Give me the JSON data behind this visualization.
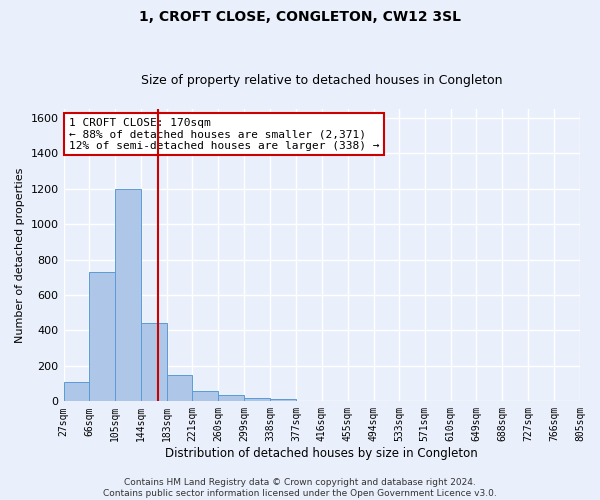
{
  "title": "1, CROFT CLOSE, CONGLETON, CW12 3SL",
  "subtitle": "Size of property relative to detached houses in Congleton",
  "xlabel": "Distribution of detached houses by size in Congleton",
  "ylabel": "Number of detached properties",
  "bin_edges": [
    27,
    66,
    105,
    144,
    183,
    221,
    260,
    299,
    338,
    377,
    416,
    455,
    494,
    533,
    571,
    610,
    649,
    688,
    727,
    766,
    805
  ],
  "bar_heights": [
    110,
    730,
    1200,
    440,
    150,
    60,
    35,
    20,
    12,
    0,
    0,
    0,
    0,
    0,
    0,
    0,
    0,
    0,
    0,
    0
  ],
  "bar_color": "#aec6e8",
  "bar_edgecolor": "#5b9bd5",
  "property_size": 170,
  "vline_color": "#cc0000",
  "annotation_line1": "1 CROFT CLOSE: 170sqm",
  "annotation_line2": "← 88% of detached houses are smaller (2,371)",
  "annotation_line3": "12% of semi-detached houses are larger (338) →",
  "annotation_box_color": "#ffffff",
  "annotation_box_edgecolor": "#cc0000",
  "ylim": [
    0,
    1650
  ],
  "yticks": [
    0,
    200,
    400,
    600,
    800,
    1000,
    1200,
    1400,
    1600
  ],
  "tick_labels": [
    "27sqm",
    "66sqm",
    "105sqm",
    "144sqm",
    "183sqm",
    "221sqm",
    "260sqm",
    "299sqm",
    "338sqm",
    "377sqm",
    "416sqm",
    "455sqm",
    "494sqm",
    "533sqm",
    "571sqm",
    "610sqm",
    "649sqm",
    "688sqm",
    "727sqm",
    "766sqm",
    "805sqm"
  ],
  "footer_line1": "Contains HM Land Registry data © Crown copyright and database right 2024.",
  "footer_line2": "Contains public sector information licensed under the Open Government Licence v3.0.",
  "bg_color": "#eaf0fb",
  "grid_color": "#ffffff",
  "title_fontsize": 10,
  "subtitle_fontsize": 9,
  "xlabel_fontsize": 8.5,
  "ylabel_fontsize": 8,
  "tick_fontsize": 7,
  "annotation_fontsize": 8,
  "footer_fontsize": 6.5
}
